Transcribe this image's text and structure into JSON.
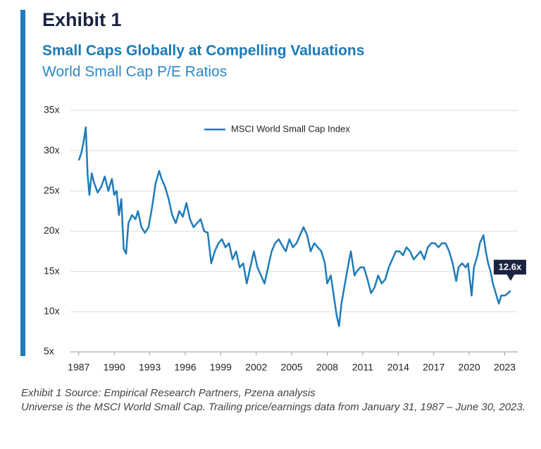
{
  "chart_data": {
    "type": "line",
    "heading": "Exhibit 1",
    "title": "Small Caps Globally at Compelling Valuations",
    "subtitle": "World Small Cap P/E Ratios",
    "legend": "upper center",
    "grid": true,
    "xlim": [
      1986.3,
      2024.1
    ],
    "xticks": [
      1987,
      1990,
      1993,
      1996,
      1999,
      2002,
      2005,
      2008,
      2011,
      2014,
      2017,
      2020,
      2023
    ],
    "ylim": [
      5,
      35
    ],
    "yticks": [
      {
        "value": 5,
        "label": "5x"
      },
      {
        "value": 10,
        "label": "10x"
      },
      {
        "value": 15,
        "label": "15x"
      },
      {
        "value": 20,
        "label": "20x"
      },
      {
        "value": 25,
        "label": "25x"
      },
      {
        "value": 30,
        "label": "30x"
      },
      {
        "value": 35,
        "label": "35x"
      }
    ],
    "x": [
      1987.0,
      1987.2,
      1987.4,
      1987.6,
      1987.75,
      1987.9,
      1988.1,
      1988.3,
      1988.6,
      1988.9,
      1989.2,
      1989.5,
      1989.8,
      1990.0,
      1990.2,
      1990.4,
      1990.6,
      1990.8,
      1991.0,
      1991.2,
      1991.5,
      1991.8,
      1992.0,
      1992.3,
      1992.6,
      1992.9,
      1993.2,
      1993.5,
      1993.8,
      1994.0,
      1994.3,
      1994.6,
      1994.9,
      1995.2,
      1995.5,
      1995.8,
      1996.1,
      1996.4,
      1996.7,
      1997.0,
      1997.3,
      1997.6,
      1997.9,
      1998.2,
      1998.5,
      1998.8,
      1999.1,
      1999.4,
      1999.7,
      2000.0,
      2000.3,
      2000.6,
      2000.9,
      2001.2,
      2001.5,
      2001.8,
      2002.1,
      2002.4,
      2002.7,
      2003.0,
      2003.3,
      2003.6,
      2003.9,
      2004.2,
      2004.5,
      2004.8,
      2005.1,
      2005.4,
      2005.7,
      2006.0,
      2006.3,
      2006.6,
      2006.9,
      2007.2,
      2007.5,
      2007.8,
      2008.0,
      2008.3,
      2008.6,
      2008.8,
      2009.0,
      2009.2,
      2009.5,
      2009.8,
      2010.0,
      2010.3,
      2010.5,
      2010.8,
      2011.1,
      2011.4,
      2011.7,
      2012.0,
      2012.3,
      2012.6,
      2012.9,
      2013.2,
      2013.5,
      2013.8,
      2014.1,
      2014.4,
      2014.7,
      2015.0,
      2015.3,
      2015.6,
      2015.9,
      2016.2,
      2016.5,
      2016.8,
      2017.1,
      2017.4,
      2017.7,
      2018.0,
      2018.3,
      2018.6,
      2018.9,
      2019.1,
      2019.4,
      2019.7,
      2019.9,
      2020.2,
      2020.4,
      2020.7,
      2020.9,
      2021.2,
      2021.4,
      2021.6,
      2021.8,
      2022.0,
      2022.3,
      2022.5,
      2022.7,
      2023.0,
      2023.2,
      2023.5
    ],
    "series": [
      {
        "name": "MSCI World Small Cap Index",
        "color": "#1f7bb8",
        "values": [
          28.8,
          29.6,
          31.0,
          32.9,
          27.0,
          24.5,
          27.2,
          26.0,
          24.8,
          25.5,
          26.8,
          25.0,
          26.5,
          24.5,
          25.0,
          22.0,
          24.0,
          17.8,
          17.2,
          21.0,
          22.0,
          21.5,
          22.5,
          20.5,
          19.8,
          20.5,
          23.0,
          26.0,
          27.5,
          26.5,
          25.5,
          24.0,
          22.0,
          21.0,
          22.5,
          21.8,
          23.5,
          21.5,
          20.5,
          21.0,
          21.5,
          20.0,
          19.8,
          16.0,
          17.5,
          18.5,
          19.0,
          18.0,
          18.5,
          16.5,
          17.5,
          15.5,
          16.0,
          13.5,
          15.5,
          17.5,
          15.5,
          14.5,
          13.5,
          15.5,
          17.5,
          18.5,
          19.0,
          18.2,
          17.5,
          19.0,
          18.0,
          18.5,
          19.5,
          20.5,
          19.5,
          17.5,
          18.5,
          18.0,
          17.5,
          16.0,
          13.5,
          14.5,
          11.5,
          9.5,
          8.2,
          11.0,
          13.5,
          16.0,
          17.5,
          14.5,
          15.0,
          15.5,
          15.5,
          14.0,
          12.3,
          13.0,
          14.5,
          13.5,
          14.0,
          15.5,
          16.5,
          17.5,
          17.5,
          17.0,
          18.0,
          17.5,
          16.5,
          17.0,
          17.5,
          16.5,
          18.0,
          18.5,
          18.5,
          18.0,
          18.5,
          18.5,
          17.5,
          16.0,
          13.8,
          15.5,
          16.0,
          15.5,
          16.0,
          12.0,
          15.5,
          17.0,
          18.5,
          19.5,
          17.5,
          16.0,
          15.0,
          13.5,
          12.0,
          11.0,
          12.0,
          12.0,
          12.2,
          12.6
        ]
      }
    ],
    "annotations": [
      {
        "x": 2023.5,
        "y": 12.6,
        "label": "12.6x"
      }
    ],
    "notes": [
      "Exhibit 1 Source: Empirical Research Partners, Pzena analysis",
      "Universe is the MSCI World Small Cap. Trailing price/earnings data from January 31, 1987 – June 30, 2023."
    ]
  }
}
